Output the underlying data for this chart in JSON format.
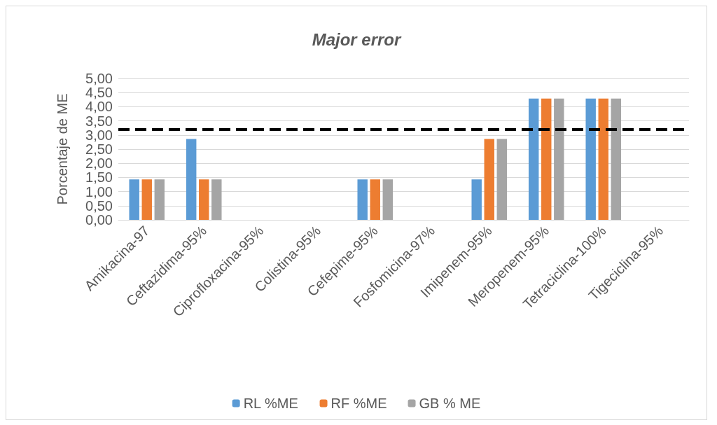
{
  "chart_data": {
    "type": "bar",
    "title": "Major error",
    "ylabel": "Porcentaje de ME",
    "categories": [
      "Amikacina-97",
      "Ceftazidima-95%",
      "Ciprofloxacina-95%",
      "Colistina-95%",
      "Cefepime-95%",
      "Fosfomicina-97%",
      "Imipenem-95%",
      "Meropenem-95%",
      "Tetraciclina-100%",
      "Tigeciclina-95%"
    ],
    "series": [
      {
        "name": "RL %ME",
        "color": "#5b9bd5",
        "values": [
          1.43,
          2.86,
          0,
          0,
          1.43,
          0,
          1.43,
          4.29,
          4.29,
          0
        ]
      },
      {
        "name": "RF %ME",
        "color": "#ed7d31",
        "values": [
          1.43,
          1.43,
          0,
          0,
          1.43,
          0,
          2.86,
          4.29,
          4.29,
          0
        ]
      },
      {
        "name": "GB % ME",
        "color": "#a5a5a5",
        "values": [
          1.43,
          1.43,
          0,
          0,
          1.43,
          0,
          2.86,
          4.29,
          4.29,
          0
        ]
      }
    ],
    "ylim": [
      0,
      5
    ],
    "yticks": [
      {
        "value": 0,
        "label": "0,00"
      },
      {
        "value": 0.5,
        "label": "0,50"
      },
      {
        "value": 1,
        "label": "1,00"
      },
      {
        "value": 1.5,
        "label": "1,50"
      },
      {
        "value": 2,
        "label": "2,00"
      },
      {
        "value": 2.5,
        "label": "2,50"
      },
      {
        "value": 3,
        "label": "3,00"
      },
      {
        "value": 3.5,
        "label": "3,50"
      },
      {
        "value": 4,
        "label": "4,00"
      },
      {
        "value": 4.5,
        "label": "4,50"
      },
      {
        "value": 5,
        "label": "5,00"
      }
    ],
    "ref_lines": [
      {
        "axis": "y",
        "value": 3.2,
        "color": "#000000",
        "line_style": "dashed"
      }
    ],
    "grid": "y",
    "legend": "bottom"
  }
}
